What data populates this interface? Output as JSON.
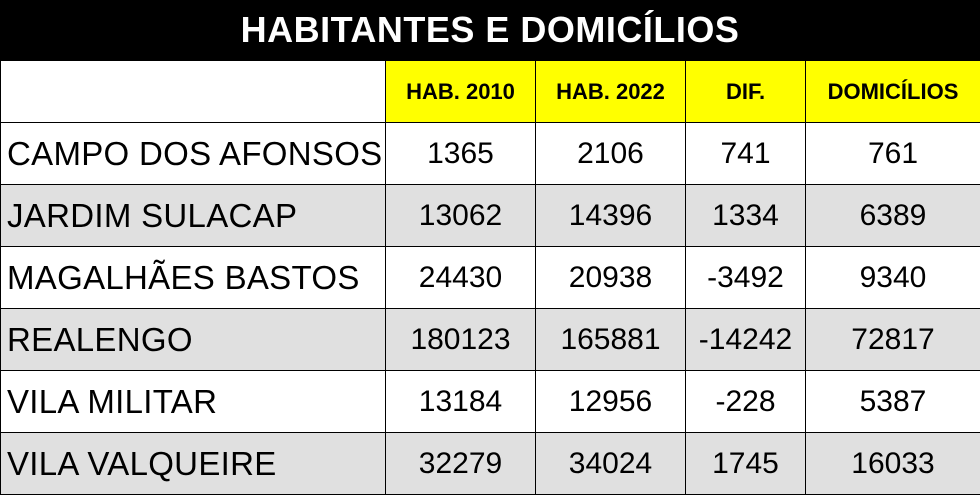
{
  "title": "HABITANTES E DOMICÍLIOS",
  "colors": {
    "title_bg": "#000000",
    "header_bg": "#ffff00",
    "alt_row_bg": "#e0e0e0"
  },
  "headers": [
    "",
    "HAB. 2010",
    "HAB. 2022",
    "DIF.",
    "DOMICÍLIOS"
  ],
  "rows": [
    {
      "bairro": "CAMPO DOS AFONSOS",
      "hab2010": "1365",
      "hab2022": "2106",
      "dif": "741",
      "domicilios": "761"
    },
    {
      "bairro": "JARDIM SULACAP",
      "hab2010": "13062",
      "hab2022": "14396",
      "dif": "1334",
      "domicilios": "6389"
    },
    {
      "bairro": "MAGALHÃES BASTOS",
      "hab2010": "24430",
      "hab2022": "20938",
      "dif": "-3492",
      "domicilios": "9340"
    },
    {
      "bairro": "REALENGO",
      "hab2010": "180123",
      "hab2022": "165881",
      "dif": "-14242",
      "domicilios": "72817"
    },
    {
      "bairro": "VILA MILITAR",
      "hab2010": "13184",
      "hab2022": "12956",
      "dif": "-228",
      "domicilios": "5387"
    },
    {
      "bairro": "VILA VALQUEIRE",
      "hab2010": "32279",
      "hab2022": "34024",
      "dif": "1745",
      "domicilios": "16033"
    }
  ]
}
